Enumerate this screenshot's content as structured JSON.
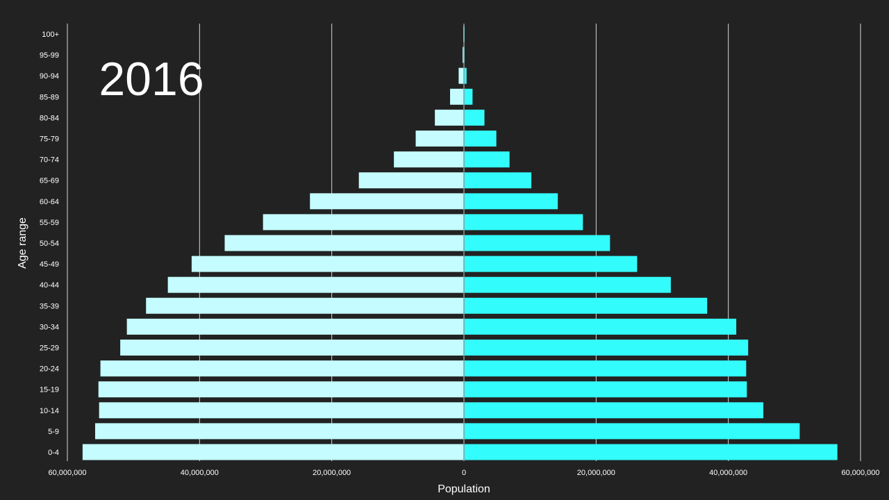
{
  "chart_data": {
    "type": "bar",
    "orientation": "horizontal",
    "annotation": "2016",
    "xlabel": "Population",
    "ylabel": "Age range",
    "xlim": [
      -60000000,
      60000000
    ],
    "x_ticks": [
      -60000000,
      -40000000,
      -20000000,
      0,
      20000000,
      40000000,
      60000000
    ],
    "x_tick_labels": [
      "60,000,000",
      "40,000,000",
      "20,000,000",
      "0",
      "20,000,000",
      "40,000,000",
      "60,000,000"
    ],
    "grid": true,
    "categories": [
      "100+",
      "95-99",
      "90-94",
      "85-89",
      "80-84",
      "75-79",
      "70-74",
      "65-69",
      "60-64",
      "55-59",
      "50-54",
      "45-49",
      "40-44",
      "35-39",
      "30-34",
      "25-29",
      "20-24",
      "15-19",
      "10-14",
      "5-9",
      "0-4"
    ],
    "series": [
      {
        "side": "left",
        "color": "#c4fcff",
        "values": [
          100000,
          200000,
          800000,
          2100000,
          4400000,
          7300000,
          10600000,
          15900000,
          23300000,
          30400000,
          36200000,
          41200000,
          44800000,
          48100000,
          51000000,
          52000000,
          55000000,
          55300000,
          55200000,
          55800000,
          57700000
        ]
      },
      {
        "side": "right",
        "color": "#33fcfc",
        "values": [
          50000,
          100000,
          400000,
          1300000,
          3100000,
          4900000,
          6900000,
          10200000,
          14200000,
          18000000,
          22100000,
          26200000,
          31300000,
          36800000,
          41200000,
          43000000,
          42700000,
          42800000,
          45300000,
          50800000,
          56500000
        ]
      }
    ]
  }
}
